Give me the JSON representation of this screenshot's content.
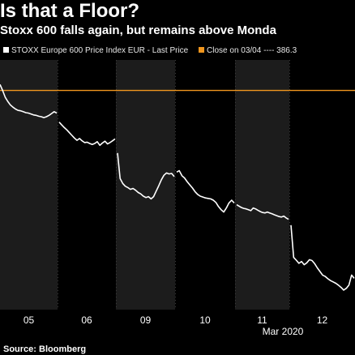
{
  "title": "Is that a Floor?",
  "subtitle": "Stoxx 600 falls again, but remains above Monda",
  "legend": {
    "series_label": "STOXX Europe 600 Price Index EUR - Last Price",
    "reference_label": "Close on 03/04 ---- 386.3"
  },
  "source": "Source: Bloomberg",
  "colors": {
    "background": "#000000",
    "price_line": "#ffffff",
    "reference_line": "#f0961e",
    "alt_band": "#1c1c1c",
    "grid": "#3a3a3a"
  },
  "chart_data": {
    "type": "line",
    "x_tick_labels": [
      "05",
      "06",
      "09",
      "10",
      "11",
      "12"
    ],
    "x_sublabel": "Mar 2020",
    "grid": "vertical dotted lines at session boundaries",
    "reference_line": {
      "label": "Close on 03/04",
      "value": 386.3
    },
    "ylim": [
      338,
      393
    ],
    "series": [
      {
        "name": "STOXX Europe 600 Price Index EUR - Last Price",
        "sessions": [
          {
            "label": "05",
            "values": [
              387.6,
              386.3,
              384.8,
              383.9,
              383.1,
              382.6,
              382.2,
              381.9,
              381.8,
              381.6,
              381.4,
              381.3,
              381.1,
              380.9,
              380.8,
              380.6,
              380.5,
              380.3,
              380.5,
              380.8,
              381.2,
              381.6,
              381.3
            ]
          },
          {
            "label": "06",
            "values": [
              379.3,
              378.7,
              378.1,
              377.6,
              377.0,
              376.4,
              375.8,
              375.3,
              375.7,
              375.2,
              374.8,
              374.9,
              374.6,
              374.4,
              374.6,
              375.0,
              374.2,
              374.7,
              375.1,
              374.5,
              374.8,
              375.2,
              375.6
            ]
          },
          {
            "label": "09",
            "values": [
              372.5,
              366.9,
              365.8,
              365.2,
              364.9,
              364.5,
              364.7,
              364.3,
              363.8,
              363.5,
              363.0,
              362.7,
              362.9,
              362.4,
              362.9,
              364.1,
              365.3,
              366.6,
              367.6,
              368.1,
              367.9,
              368.0,
              367.3
            ]
          },
          {
            "label": "10",
            "values": [
              368.3,
              368.6,
              367.5,
              367.0,
              366.2,
              365.5,
              364.8,
              364.0,
              363.4,
              363.0,
              362.8,
              362.6,
              362.5,
              362.4,
              362.1,
              361.6,
              360.7,
              360.0,
              359.5,
              360.4,
              361.5,
              362.1,
              361.5
            ]
          },
          {
            "label": "11",
            "values": [
              361.1,
              360.8,
              360.5,
              360.3,
              360.2,
              360.0,
              359.8,
              360.4,
              360.2,
              359.9,
              359.6,
              359.4,
              359.3,
              359.5,
              359.3,
              359.1,
              358.9,
              358.7,
              358.5,
              358.4,
              358.6,
              358.2,
              357.9
            ]
          },
          {
            "label": "12",
            "values": [
              356.6,
              349.5,
              348.9,
              348.2,
              348.6,
              347.9,
              348.3,
              349.0,
              348.8,
              348.1,
              347.2,
              346.4,
              345.6,
              345.3,
              344.8,
              344.4,
              344.1,
              343.8,
              343.4,
              342.9,
              342.3,
              342.7,
              343.4,
              345.6,
              344.9
            ]
          }
        ]
      }
    ]
  }
}
